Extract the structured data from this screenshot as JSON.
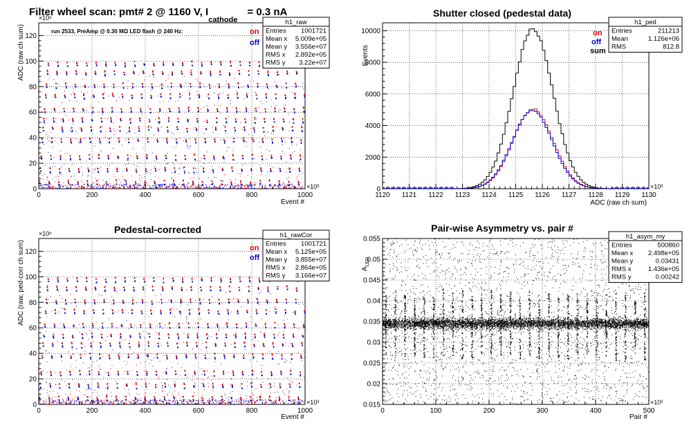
{
  "chart_data": [
    {
      "type": "scatter",
      "title": "Filter wheel scan: pmt#   2 @  1160 V, I",
      "title_sub": "cathode",
      "title_suffix": "= 0.3 nA",
      "annotation": "run 2533, PreAmp @ 0.30 MΩ   LED flash @  240 Hz:",
      "xlabel": "Event #",
      "ylabel": "ADC (raw ch sum)",
      "x_multiplier": "×10³",
      "y_multiplier": "×10⁶",
      "xlim": [
        0,
        1000
      ],
      "ylim": [
        0,
        130
      ],
      "x_ticks": [
        0,
        200,
        400,
        600,
        800,
        1000
      ],
      "y_ticks": [
        0,
        20,
        40,
        60,
        80,
        100,
        120
      ],
      "grid": true,
      "legend": [
        "on",
        "off"
      ],
      "legend_colors": [
        "#e00000",
        "#0000d0"
      ],
      "stats": {
        "name": "h1_raw",
        "rows": [
          [
            "Entries",
            "1001721"
          ],
          [
            "Mean x",
            "5.009e+05"
          ],
          [
            "Mean y",
            "3.556e+07"
          ],
          [
            "RMS x",
            "2.892e+05"
          ],
          [
            "RMS y",
            "3.22e+07"
          ]
        ]
      },
      "level_pattern": [
        5,
        15,
        25,
        38,
        47,
        54,
        62,
        73,
        81,
        91,
        98
      ],
      "period": 36
    },
    {
      "type": "line",
      "title": "Shutter closed (pedestal data)",
      "xlabel": "ADC (raw ch sum)",
      "ylabel": "Events",
      "x_multiplier": "×10³",
      "xlim": [
        1120,
        1130
      ],
      "ylim": [
        0,
        10500
      ],
      "x_ticks": [
        1120,
        1121,
        1122,
        1123,
        1124,
        1125,
        1126,
        1127,
        1128,
        1129,
        1130
      ],
      "y_ticks": [
        0,
        2000,
        4000,
        6000,
        8000,
        10000
      ],
      "grid": true,
      "legend": [
        "on",
        "off",
        "sum"
      ],
      "legend_colors": [
        "#e00000",
        "#0000d0",
        "#000000"
      ],
      "stats": {
        "name": "h1_ped",
        "rows": [
          [
            "Entries",
            "211213"
          ],
          [
            "Mean",
            "1.126e+06"
          ],
          [
            "RMS",
            "812.8"
          ]
        ]
      },
      "series": [
        {
          "name": "sum",
          "color": "#000000",
          "peak": 10100,
          "mean": 1125.65,
          "sigma": 0.75
        },
        {
          "name": "on",
          "color": "#e00000",
          "peak": 5050,
          "mean": 1125.65,
          "sigma": 0.75
        },
        {
          "name": "off",
          "color": "#0000d0",
          "peak": 4960,
          "mean": 1125.62,
          "sigma": 0.75
        }
      ]
    },
    {
      "type": "scatter",
      "title": "Pedestal-corrected",
      "xlabel": "Event #",
      "ylabel": "ADC (raw, ped-corr ch sum)",
      "x_multiplier": "×10³",
      "y_multiplier": "×10⁶",
      "xlim": [
        0,
        1000
      ],
      "ylim": [
        0,
        130
      ],
      "x_ticks": [
        0,
        200,
        400,
        600,
        800,
        1000
      ],
      "y_ticks": [
        0,
        20,
        40,
        60,
        80,
        100,
        120
      ],
      "grid": true,
      "legend": [
        "on",
        "off"
      ],
      "legend_colors": [
        "#e00000",
        "#0000d0"
      ],
      "stats": {
        "name": "h1_rawCor",
        "rows": [
          [
            "Entries",
            "1001721"
          ],
          [
            "Mean x",
            "5.125e+05"
          ],
          [
            "Mean y",
            "3.855e+07"
          ],
          [
            "RMS x",
            "2.864e+05"
          ],
          [
            "RMS y",
            "3.166e+07"
          ]
        ]
      },
      "level_pattern": [
        5,
        15,
        25,
        38,
        47,
        54,
        62,
        73,
        81,
        91,
        98
      ],
      "period": 36
    },
    {
      "type": "scatter",
      "title": "Pair-wise Asymmetry vs. pair #",
      "xlabel": "Pair #",
      "ylabel": "A",
      "ylabel_sub": "LED",
      "x_multiplier": "×10³",
      "xlim": [
        0,
        500
      ],
      "ylim": [
        0.015,
        0.055
      ],
      "x_ticks": [
        0,
        100,
        200,
        300,
        400,
        500
      ],
      "y_ticks": [
        0.015,
        0.02,
        0.025,
        0.03,
        0.035,
        0.04,
        0.045,
        0.05,
        0.055
      ],
      "grid": true,
      "stats": {
        "name": "h1_asym_my",
        "rows": [
          [
            "Entries",
            "500860"
          ],
          [
            "Mean x",
            "2.498e+05"
          ],
          [
            "Mean y",
            "0.03431"
          ],
          [
            "RMS x",
            "1.436e+05"
          ],
          [
            "RMS y",
            "0.00242"
          ]
        ]
      },
      "band_center": 0.0345,
      "spike_spacing": 18
    }
  ]
}
